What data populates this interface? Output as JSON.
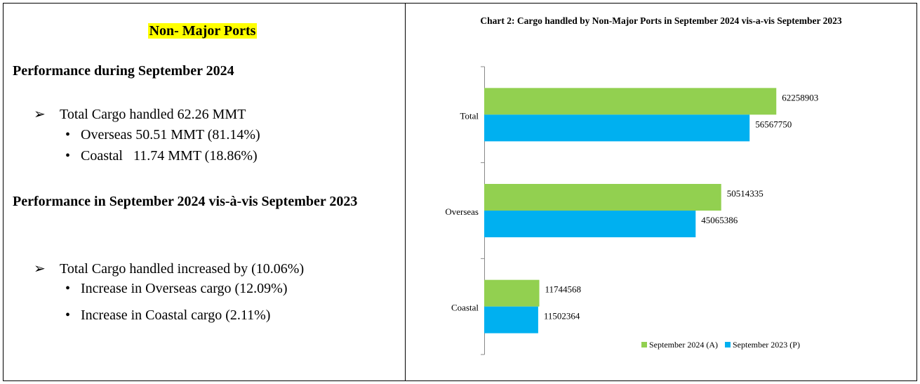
{
  "header": {
    "title": "Non- Major Ports"
  },
  "sections": [
    {
      "heading": "Performance during September 2024",
      "bullet": "Total Cargo handled 62.26 MMT",
      "subbullets": [
        "Overseas 50.51 MMT (81.14%)",
        "Coastal   11.74 MMT (18.86%)"
      ]
    },
    {
      "heading": "Performance in September 2024 vis-à-vis September 2023",
      "bullet": "Total Cargo handled increased by (10.06%)",
      "subbullets": [
        "Increase in Overseas cargo (12.09%)",
        "Increase in Coastal cargo (2.11%)"
      ]
    }
  ],
  "chart_data": {
    "type": "bar",
    "orientation": "horizontal",
    "title": "Chart 2: Cargo handled by Non-Major Ports in September 2024 vis-a-vis September 2023",
    "categories": [
      "Total",
      "Overseas",
      "Coastal"
    ],
    "series": [
      {
        "name": "September 2024 (A)",
        "color": "#92d050",
        "values": [
          62258903,
          50514335,
          11744568
        ]
      },
      {
        "name": "September 2023 (P)",
        "color": "#00b0f0",
        "values": [
          56567750,
          45065386,
          11502364
        ]
      }
    ],
    "xlim": [
      0,
      70000000
    ],
    "legend": "bottom"
  }
}
